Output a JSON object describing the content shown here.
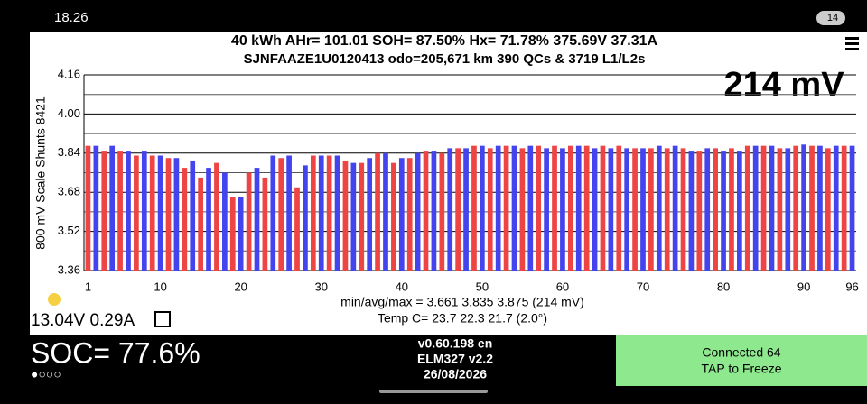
{
  "status_bar": {
    "time": "18.26",
    "battery": "14"
  },
  "header": {
    "line1": "40 kWh  AHr= 101.01  SOH= 87.50%   Hx= 71.78%   375.69V 37.31A",
    "line2": "SJNFAAZE1U0120413 odo=205,671 km  390 QCs & 3719 L1/L2s",
    "delta": "214 mV"
  },
  "chart_data": {
    "type": "bar",
    "y_label": "800 mV Scale Shunts 8421",
    "categories": [
      "1",
      null,
      null,
      null,
      null,
      null,
      null,
      null,
      null,
      "10",
      null,
      null,
      null,
      null,
      null,
      null,
      null,
      null,
      null,
      "20",
      null,
      null,
      null,
      null,
      null,
      null,
      null,
      null,
      null,
      "30",
      null,
      null,
      null,
      null,
      null,
      null,
      null,
      null,
      null,
      "40",
      null,
      null,
      null,
      null,
      null,
      null,
      null,
      null,
      null,
      "50",
      null,
      null,
      null,
      null,
      null,
      null,
      null,
      null,
      null,
      "60",
      null,
      null,
      null,
      null,
      null,
      null,
      null,
      null,
      null,
      "70",
      null,
      null,
      null,
      null,
      null,
      null,
      null,
      null,
      null,
      "80",
      null,
      null,
      null,
      null,
      null,
      null,
      null,
      null,
      null,
      "90",
      null,
      null,
      null,
      null,
      null,
      "96"
    ],
    "values": [
      3.87,
      3.87,
      3.85,
      3.87,
      3.85,
      3.85,
      3.83,
      3.85,
      3.83,
      3.83,
      3.82,
      3.82,
      3.78,
      3.81,
      3.74,
      3.78,
      3.8,
      3.76,
      3.661,
      3.661,
      3.76,
      3.78,
      3.74,
      3.83,
      3.82,
      3.83,
      3.7,
      3.79,
      3.83,
      3.83,
      3.83,
      3.83,
      3.81,
      3.8,
      3.8,
      3.82,
      3.84,
      3.84,
      3.8,
      3.82,
      3.82,
      3.84,
      3.85,
      3.85,
      3.84,
      3.86,
      3.86,
      3.86,
      3.87,
      3.87,
      3.86,
      3.87,
      3.87,
      3.87,
      3.86,
      3.87,
      3.87,
      3.86,
      3.87,
      3.86,
      3.87,
      3.87,
      3.87,
      3.86,
      3.87,
      3.86,
      3.87,
      3.86,
      3.86,
      3.86,
      3.86,
      3.87,
      3.86,
      3.87,
      3.86,
      3.85,
      3.85,
      3.86,
      3.86,
      3.85,
      3.86,
      3.85,
      3.87,
      3.87,
      3.87,
      3.87,
      3.86,
      3.86,
      3.87,
      3.875,
      3.87,
      3.87,
      3.86,
      3.87,
      3.87,
      3.87
    ],
    "colors": [
      "#ee4444",
      "#4444ee"
    ],
    "ylim": [
      3.36,
      4.16
    ],
    "yticks": [
      3.36,
      3.52,
      3.68,
      3.84,
      {
        "value": 4,
        "label": "4.00"
      },
      4.16
    ],
    "yminor": [
      3.44,
      3.6,
      3.76,
      3.92,
      4.08
    ],
    "grid": true,
    "stats": "min/avg/max = 3.661 3.835 3.875  (214 mV)",
    "temps": "Temp C= 23.7  22.3  21.7  (2.0°)"
  },
  "aux_battery": "13.04V 0.29A",
  "footer": {
    "soc": "SOC= 77.6%",
    "dots": "●○○○",
    "version": "v0.60.198 en",
    "adapter": "ELM327 v2.2",
    "date": "26/08/2026",
    "connected": "Connected 64",
    "tap": "TAP to Freeze"
  }
}
